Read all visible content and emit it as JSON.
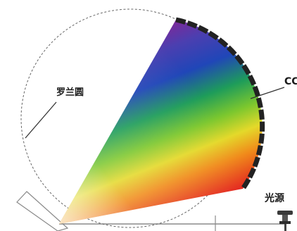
{
  "labels": {
    "rowland_circle": "罗兰圆",
    "detector": "CC",
    "light_source": "光源"
  },
  "colors": {
    "circle_stroke": "#555555",
    "detector_segments": "#222222",
    "rail": "#8a8a8a",
    "spectrum": [
      "#6a2a8c",
      "#2046b8",
      "#1e9c5a",
      "#cfd62a",
      "#f06a1a",
      "#e21a1a"
    ]
  }
}
